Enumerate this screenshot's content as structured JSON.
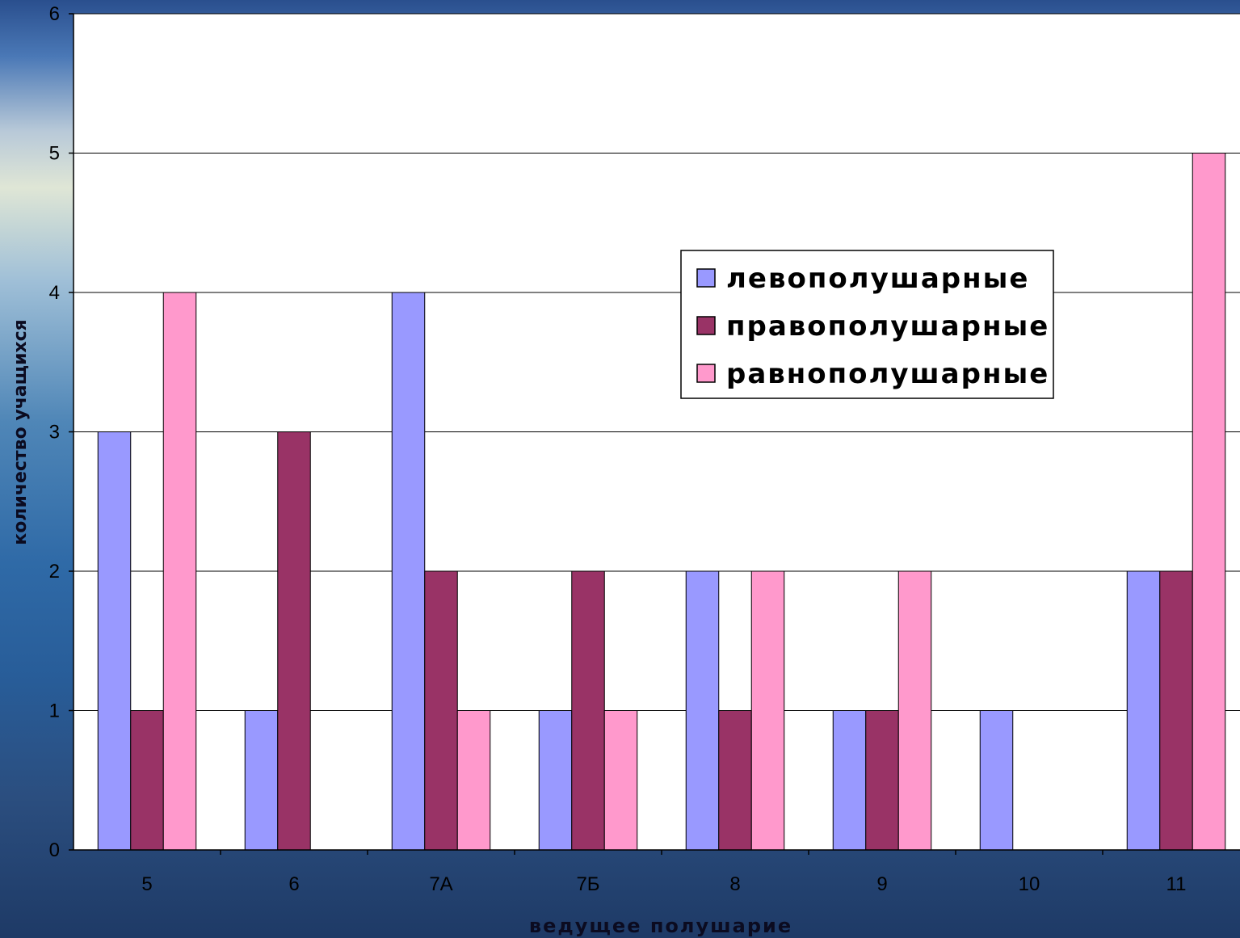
{
  "chart_data": {
    "type": "bar",
    "xlabel": "ведущее полушарие",
    "ylabel": "количество учащихся",
    "ylim": [
      0,
      6
    ],
    "yticks": [
      0,
      1,
      2,
      3,
      4,
      5,
      6
    ],
    "grid": "horizontal",
    "legend_position": "center-right",
    "categories": [
      "5",
      "6",
      "7А",
      "7Б",
      "8",
      "9",
      "10",
      "11"
    ],
    "series": [
      {
        "name": "левополушарные",
        "color": "#9999ff",
        "values": [
          3,
          1,
          4,
          1,
          2,
          1,
          1,
          2
        ]
      },
      {
        "name": "правополушарные",
        "color": "#993366",
        "values": [
          1,
          3,
          2,
          2,
          1,
          1,
          0,
          2
        ]
      },
      {
        "name": "равнополушарные",
        "color": "#ff99cc",
        "values": [
          4,
          0,
          1,
          1,
          2,
          2,
          0,
          5
        ]
      }
    ]
  }
}
